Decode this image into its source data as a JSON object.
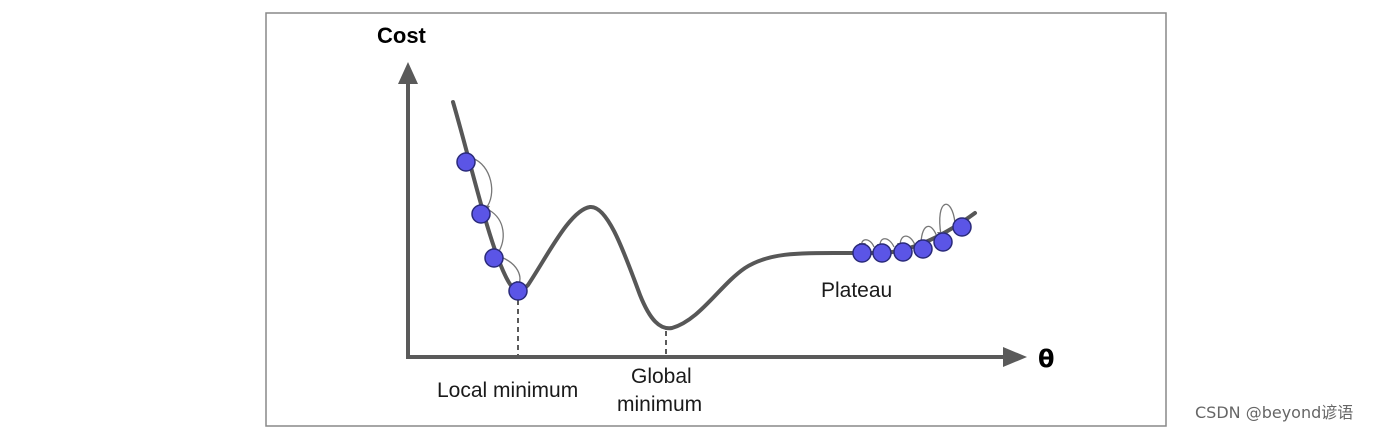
{
  "diagram": {
    "title_y_axis": "Cost",
    "title_x_axis": "θ",
    "labels": {
      "local_minimum": "Local minimum",
      "global_minimum_line1": "Global",
      "global_minimum_line2": "minimum",
      "plateau": "Plateau"
    },
    "colors": {
      "ball": "#5b55e6",
      "curve": "#575757",
      "axis": "#5a5a5a"
    }
  },
  "watermark": "CSDN @beyond谚语"
}
